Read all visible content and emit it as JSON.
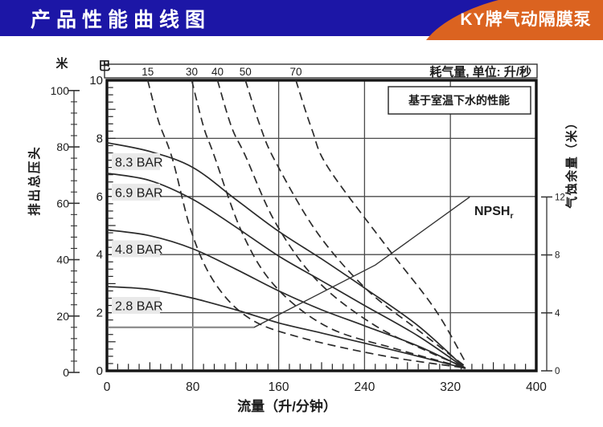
{
  "header": {
    "title": "产品性能曲线图",
    "ribbon_label": "KY牌气动隔膜泵"
  },
  "colors": {
    "header_blue": "#1c16a6",
    "ribbon_orange": "#db6320",
    "ink": "#2b2b2b",
    "grid": "#4a4a4a",
    "frame": "#141414",
    "label_bg": "#e9e9e9",
    "npsh_flat_gray": "#909090"
  },
  "chart_data": {
    "type": "line",
    "note_box": "基于室温下水的性能",
    "axes": {
      "top": {
        "title": "耗气量, 单位: 升/秒",
        "ticks": [
          "15",
          "30",
          "40",
          "50",
          "70"
        ]
      },
      "bottom": {
        "title": "流量（升/分钟）",
        "min": 0,
        "max": 400,
        "minor_step": 10,
        "ticks": [
          0,
          80,
          160,
          240,
          320,
          400
        ]
      },
      "left_bar": {
        "unit": "巴",
        "min": 0,
        "max": 10,
        "ticks": [
          10,
          8,
          6,
          4,
          2,
          0
        ]
      },
      "left_meters": {
        "unit": "米",
        "axis_title": "排出总压头",
        "min": 0,
        "max": 100,
        "ticks": [
          100,
          80,
          60,
          40,
          20,
          0
        ]
      },
      "right": {
        "title": "气蚀余量（米）",
        "min": 0,
        "max": 12,
        "ticks": [
          12,
          8,
          4,
          0
        ]
      }
    },
    "pressure_curves": [
      {
        "label": "8.3 BAR",
        "points_flow_bar": [
          [
            0,
            7.85
          ],
          [
            40,
            7.55
          ],
          [
            80,
            7.0
          ],
          [
            120,
            5.9
          ],
          [
            160,
            4.8
          ],
          [
            200,
            3.85
          ],
          [
            240,
            2.85
          ],
          [
            290,
            1.55
          ],
          [
            334,
            0.08
          ]
        ]
      },
      {
        "label": "6.9 BAR",
        "points_flow_bar": [
          [
            0,
            6.8
          ],
          [
            40,
            6.55
          ],
          [
            80,
            5.9
          ],
          [
            120,
            4.95
          ],
          [
            160,
            3.95
          ],
          [
            200,
            3.1
          ],
          [
            240,
            2.25
          ],
          [
            290,
            1.2
          ],
          [
            334,
            0.08
          ]
        ]
      },
      {
        "label": "4.8 BAR",
        "points_flow_bar": [
          [
            0,
            4.85
          ],
          [
            40,
            4.65
          ],
          [
            80,
            4.2
          ],
          [
            120,
            3.5
          ],
          [
            160,
            2.75
          ],
          [
            200,
            2.1
          ],
          [
            240,
            1.55
          ],
          [
            290,
            0.85
          ],
          [
            334,
            0.08
          ]
        ]
      },
      {
        "label": "2.8 BAR",
        "points_flow_bar": [
          [
            0,
            2.9
          ],
          [
            40,
            2.8
          ],
          [
            80,
            2.5
          ],
          [
            120,
            2.1
          ],
          [
            160,
            1.65
          ],
          [
            200,
            1.3
          ],
          [
            240,
            0.95
          ],
          [
            290,
            0.5
          ],
          [
            334,
            0.08
          ]
        ]
      }
    ],
    "air_curves": [
      {
        "label": "15",
        "points_flow_bar": [
          [
            38,
            10
          ],
          [
            48,
            8.6
          ],
          [
            61,
            7.3
          ],
          [
            79,
            4.75
          ],
          [
            101,
            3.0
          ],
          [
            133,
            1.8
          ],
          [
            180,
            1.15
          ],
          [
            260,
            0.5
          ],
          [
            334,
            0.1
          ]
        ]
      },
      {
        "label": "30",
        "points_flow_bar": [
          [
            79,
            10
          ],
          [
            90,
            8.4
          ],
          [
            99,
            7.5
          ],
          [
            126,
            4.75
          ],
          [
            157,
            2.9
          ],
          [
            206,
            1.5
          ],
          [
            270,
            0.75
          ],
          [
            334,
            0.1
          ]
        ]
      },
      {
        "label": "40",
        "points_flow_bar": [
          [
            103,
            10
          ],
          [
            116,
            8.4
          ],
          [
            129,
            7.4
          ],
          [
            157,
            5.1
          ],
          [
            196,
            3.1
          ],
          [
            248,
            1.6
          ],
          [
            300,
            0.65
          ],
          [
            334,
            0.12
          ]
        ]
      },
      {
        "label": "50",
        "points_flow_bar": [
          [
            129,
            10
          ],
          [
            143,
            8.4
          ],
          [
            157,
            7.2
          ],
          [
            196,
            4.75
          ],
          [
            242,
            2.8
          ],
          [
            290,
            1.4
          ],
          [
            334,
            0.15
          ]
        ]
      },
      {
        "label": "70",
        "points_flow_bar": [
          [
            176,
            10
          ],
          [
            191,
            8.3
          ],
          [
            206,
            7.0
          ],
          [
            258,
            4.4
          ],
          [
            305,
            2.15
          ],
          [
            334,
            0.3
          ]
        ]
      }
    ],
    "npsh": {
      "label": "NPSH",
      "label_sub": "r",
      "points_flow_m": [
        [
          1,
          3
        ],
        [
          137,
          3
        ],
        [
          250,
          7.3
        ],
        [
          338,
          12
        ]
      ]
    }
  }
}
